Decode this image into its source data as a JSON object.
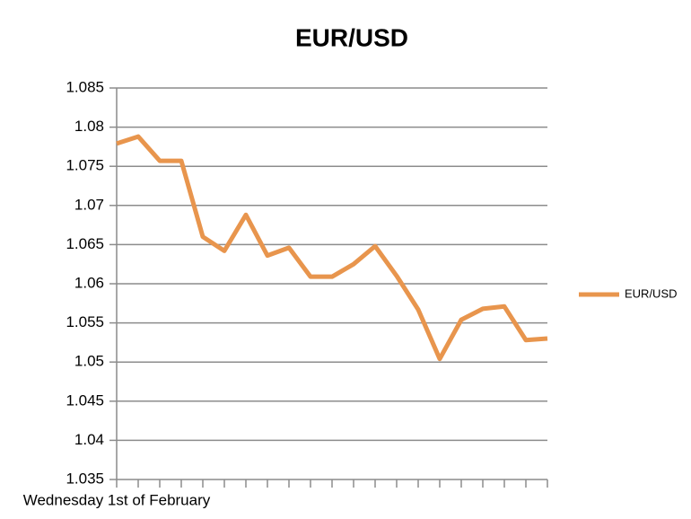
{
  "chart_data": {
    "type": "line",
    "title": "EUR/USD",
    "categories": [
      "Wednesday 1st of February",
      null,
      null,
      null,
      null,
      null,
      null,
      null,
      null,
      null,
      null,
      null,
      null,
      null,
      null,
      null,
      null,
      null,
      null,
      null,
      null
    ],
    "series": [
      {
        "name": "EUR/USD",
        "color": "#e8954d",
        "values": [
          1.0779,
          1.0788,
          1.0757,
          1.0757,
          1.066,
          1.0642,
          1.0688,
          1.0636,
          1.0646,
          1.0609,
          1.0609,
          1.0625,
          1.0648,
          1.061,
          1.0567,
          1.0504,
          1.0554,
          1.0568,
          1.0571,
          1.0528,
          1.053
        ]
      }
    ],
    "ylim": [
      1.035,
      1.085
    ],
    "yticks": [
      1.035,
      1.04,
      1.045,
      1.05,
      1.055,
      1.06,
      1.065,
      1.07,
      1.075,
      1.08,
      1.085
    ],
    "grid": true,
    "legend": "right"
  }
}
